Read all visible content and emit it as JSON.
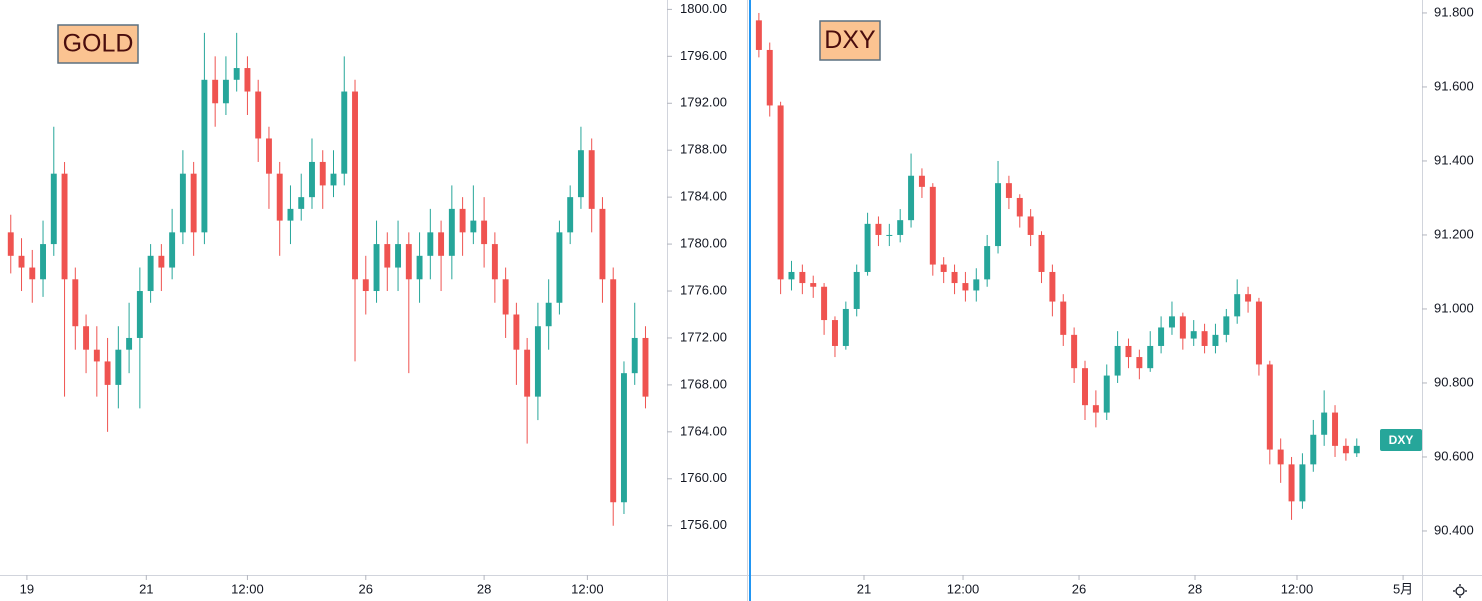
{
  "chart_data": [
    {
      "type": "candlestick",
      "title": "GOLD",
      "up_color": "#26a69a",
      "down_color": "#ef5350",
      "ylim": [
        1751.8,
        1800.8
      ],
      "yticks": [
        {
          "value": 1756,
          "label": "1756.00"
        },
        {
          "value": 1760,
          "label": "1760.00"
        },
        {
          "value": 1764,
          "label": "1764.00"
        },
        {
          "value": 1768,
          "label": "1768.00"
        },
        {
          "value": 1772,
          "label": "1772.00"
        },
        {
          "value": 1776,
          "label": "1776.00"
        },
        {
          "value": 1780,
          "label": "1780.00"
        },
        {
          "value": 1784,
          "label": "1784.00"
        },
        {
          "value": 1788,
          "label": "1788.00"
        },
        {
          "value": 1792,
          "label": "1792.00"
        },
        {
          "value": 1796,
          "label": "1796.00"
        },
        {
          "value": 1800,
          "label": "1800.00"
        }
      ],
      "xlim": [
        -1,
        61
      ],
      "xticks": [
        {
          "value": 1.5,
          "label": "19"
        },
        {
          "value": 12.6,
          "label": "21"
        },
        {
          "value": 22.0,
          "label": "12:00"
        },
        {
          "value": 33.0,
          "label": "26"
        },
        {
          "value": 44.0,
          "label": "28"
        },
        {
          "value": 53.6,
          "label": "12:00"
        }
      ],
      "open": [
        1781,
        1779,
        1778,
        1777,
        1780,
        1786,
        1777,
        1773,
        1771,
        1770,
        1768,
        1771,
        1772,
        1776,
        1779,
        1778,
        1781,
        1786,
        1781,
        1794,
        1792,
        1794,
        1795,
        1793,
        1789,
        1786,
        1782,
        1783,
        1784,
        1787,
        1785,
        1786,
        1793,
        1777,
        1776,
        1780,
        1778,
        1780,
        1777,
        1779,
        1781,
        1779,
        1783,
        1781,
        1782,
        1780,
        1777,
        1774,
        1771,
        1767,
        1773,
        1775,
        1781,
        1784,
        1788,
        1783,
        1777,
        1758,
        1769,
        1772
      ],
      "high": [
        1782.5,
        1780.5,
        1779.5,
        1782,
        1790,
        1787,
        1778,
        1774,
        1773,
        1772,
        1773,
        1775,
        1778,
        1780,
        1780,
        1783,
        1788,
        1787,
        1798,
        1796,
        1796,
        1798,
        1796,
        1794,
        1790,
        1787,
        1785,
        1786,
        1789,
        1788,
        1788,
        1796,
        1794,
        1779,
        1782,
        1781,
        1782,
        1781,
        1781,
        1783,
        1782,
        1785,
        1784,
        1785,
        1784,
        1781,
        1778,
        1775,
        1772,
        1775,
        1777,
        1782,
        1785,
        1790,
        1789,
        1784,
        1778,
        1770,
        1775,
        1773
      ],
      "low": [
        1777.5,
        1776,
        1775,
        1775.5,
        1779,
        1767,
        1771,
        1769,
        1767,
        1764,
        1766,
        1769,
        1766,
        1775,
        1776,
        1777,
        1780,
        1779,
        1780,
        1790,
        1791,
        1793,
        1791,
        1787,
        1783,
        1779,
        1780,
        1782,
        1783,
        1783,
        1784,
        1785,
        1770,
        1774,
        1775,
        1776,
        1776,
        1769,
        1775,
        1777,
        1776,
        1777,
        1779,
        1780,
        1778,
        1775,
        1772,
        1768,
        1763,
        1765,
        1771,
        1774,
        1780,
        1783,
        1781,
        1775,
        1756,
        1757,
        1768,
        1766
      ],
      "close": [
        1779,
        1778,
        1777,
        1780,
        1786,
        1777,
        1773,
        1771,
        1770,
        1768,
        1771,
        1772,
        1776,
        1779,
        1778,
        1781,
        1786,
        1781,
        1794,
        1792,
        1794,
        1795,
        1793,
        1789,
        1786,
        1782,
        1783,
        1784,
        1787,
        1785,
        1786,
        1793,
        1777,
        1776,
        1780,
        1778,
        1780,
        1777,
        1779,
        1781,
        1779,
        1783,
        1781,
        1782,
        1780,
        1777,
        1774,
        1771,
        1767,
        1773,
        1775,
        1781,
        1784,
        1788,
        1783,
        1777,
        1758,
        1769,
        1772,
        1767
      ]
    },
    {
      "type": "candlestick",
      "title": "DXY",
      "up_color": "#26a69a",
      "down_color": "#ef5350",
      "ylim": [
        90.281,
        91.835
      ],
      "yticks": [
        {
          "value": 90.4,
          "label": "90.400"
        },
        {
          "value": 90.6,
          "label": "90.600"
        },
        {
          "value": 90.8,
          "label": "90.800"
        },
        {
          "value": 91.0,
          "label": "91.000"
        },
        {
          "value": 91.2,
          "label": "91.200"
        },
        {
          "value": 91.4,
          "label": "91.400"
        },
        {
          "value": 91.6,
          "label": "91.600"
        },
        {
          "value": 91.8,
          "label": "91.800"
        }
      ],
      "xlim": [
        -1,
        61
      ],
      "xticks": [
        {
          "value": 9.67,
          "label": "21"
        },
        {
          "value": 18.78,
          "label": "12:00"
        },
        {
          "value": 29.45,
          "label": "26"
        },
        {
          "value": 40.12,
          "label": "28"
        },
        {
          "value": 49.5,
          "label": "12:00"
        },
        {
          "value": 59.26,
          "label": "5月"
        }
      ],
      "price_label": {
        "value": 90.646,
        "label": "DXY"
      },
      "open": [
        91.78,
        91.7,
        91.55,
        91.08,
        91.1,
        91.07,
        91.06,
        90.97,
        90.9,
        91.0,
        91.1,
        91.23,
        91.2,
        91.2,
        91.24,
        91.36,
        91.33,
        91.12,
        91.1,
        91.07,
        91.05,
        91.08,
        91.17,
        91.34,
        91.3,
        91.25,
        91.2,
        91.1,
        91.02,
        90.93,
        90.84,
        90.74,
        90.72,
        90.82,
        90.9,
        90.87,
        90.84,
        90.9,
        90.95,
        90.98,
        90.92,
        90.94,
        90.9,
        90.93,
        90.98,
        91.04,
        91.02,
        90.85,
        90.62,
        90.58,
        90.48,
        90.58,
        90.66,
        90.72,
        90.63,
        90.61
      ],
      "high": [
        91.8,
        91.72,
        91.56,
        91.13,
        91.12,
        91.09,
        91.07,
        90.98,
        91.02,
        91.12,
        91.26,
        91.25,
        91.23,
        91.27,
        91.42,
        91.38,
        91.34,
        91.14,
        91.12,
        91.1,
        91.11,
        91.2,
        91.4,
        91.36,
        91.31,
        91.27,
        91.21,
        91.12,
        91.04,
        90.95,
        90.86,
        90.78,
        90.85,
        90.94,
        90.92,
        90.89,
        90.94,
        90.98,
        91.02,
        90.99,
        90.97,
        90.96,
        90.96,
        91.0,
        91.08,
        91.06,
        91.03,
        90.86,
        90.65,
        90.6,
        90.61,
        90.7,
        90.78,
        90.74,
        90.65,
        90.65
      ],
      "low": [
        91.68,
        91.52,
        91.04,
        91.05,
        91.04,
        91.03,
        90.93,
        90.87,
        90.89,
        90.98,
        91.09,
        91.17,
        91.17,
        91.18,
        91.22,
        91.3,
        91.09,
        91.07,
        91.04,
        91.02,
        91.02,
        91.06,
        91.15,
        91.27,
        91.22,
        91.17,
        91.07,
        90.98,
        90.9,
        90.8,
        90.7,
        90.68,
        90.7,
        90.8,
        90.84,
        90.81,
        90.83,
        90.88,
        90.93,
        90.89,
        90.9,
        90.88,
        90.88,
        90.91,
        90.96,
        90.99,
        90.82,
        90.58,
        90.53,
        90.43,
        90.46,
        90.56,
        90.63,
        90.6,
        90.59,
        90.6
      ],
      "close": [
        91.7,
        91.55,
        91.08,
        91.1,
        91.07,
        91.06,
        90.97,
        90.9,
        91.0,
        91.1,
        91.23,
        91.2,
        91.2,
        91.24,
        91.36,
        91.33,
        91.12,
        91.1,
        91.07,
        91.05,
        91.08,
        91.17,
        91.34,
        91.3,
        91.25,
        91.2,
        91.1,
        91.02,
        90.93,
        90.84,
        90.74,
        90.72,
        90.82,
        90.9,
        90.87,
        90.84,
        90.9,
        90.95,
        90.98,
        90.92,
        90.94,
        90.9,
        90.93,
        90.98,
        91.04,
        91.02,
        90.85,
        90.62,
        90.58,
        90.48,
        90.58,
        90.66,
        90.72,
        90.63,
        90.61,
        90.63
      ]
    }
  ]
}
